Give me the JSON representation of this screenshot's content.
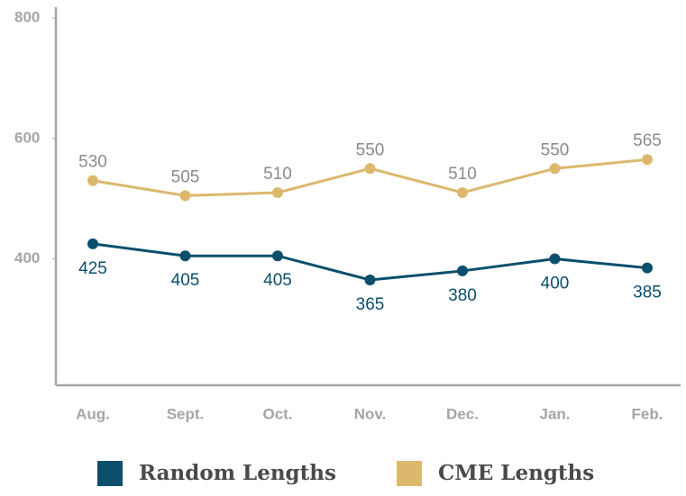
{
  "chart_data": {
    "type": "line",
    "categories": [
      "Aug.",
      "Sept.",
      "Oct.",
      "Nov.",
      "Dec.",
      "Jan.",
      "Feb."
    ],
    "series": [
      {
        "name": "Random Lengths",
        "color": "#0b4f6c",
        "values": [
          425,
          405,
          405,
          365,
          380,
          400,
          385
        ]
      },
      {
        "name": "CME Lengths",
        "color": "#dcb86e",
        "values": [
          530,
          505,
          510,
          550,
          510,
          550,
          565
        ]
      }
    ],
    "ylim": [
      190,
      818
    ],
    "yticks": [
      400,
      600,
      800
    ],
    "grid": false
  }
}
